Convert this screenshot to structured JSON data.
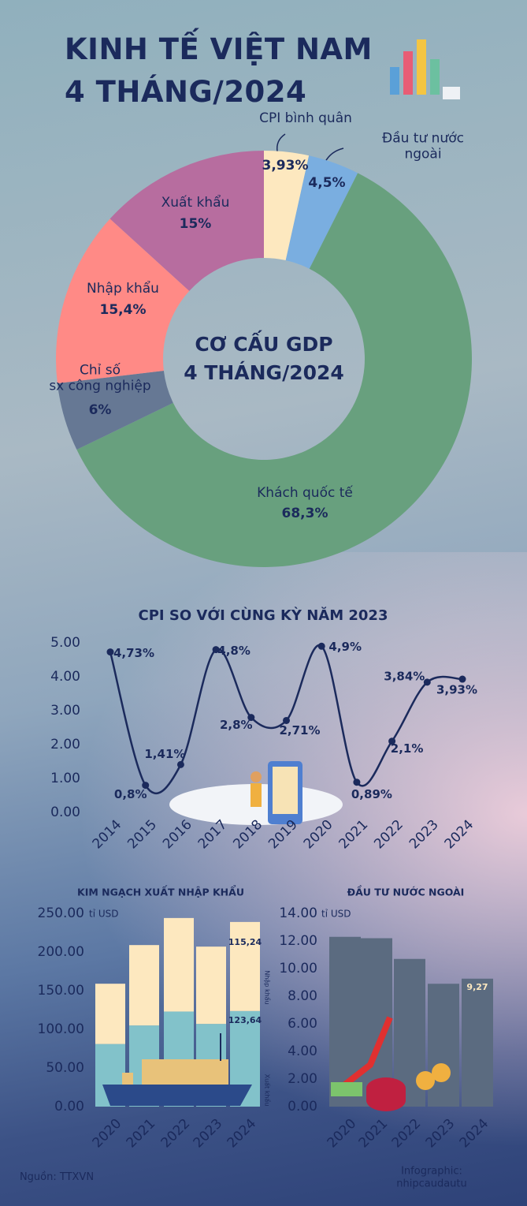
{
  "header": {
    "title": "KINH TẾ VIỆT NAM\n4 THÁNG/2024"
  },
  "chart_data": [
    {
      "type": "donut",
      "title": "CƠ CẤU GDP\n4 THÁNG/2024",
      "categories": [
        "CPI bình quân",
        "Đầu tư nước ngoài",
        "Khách quốc tế",
        "Chỉ số\nsx công nghiệp",
        "Nhập khẩu",
        "Xuất khẩu"
      ],
      "values": [
        3.93,
        4.5,
        68.3,
        6,
        15.4,
        15
      ],
      "value_labels": [
        "3,93%",
        "4,5%",
        "68,3%",
        "6%",
        "15,4%",
        "15%"
      ],
      "colors": [
        "#fde8bf",
        "#7aaee0",
        "#68a07e",
        "#667894",
        "#ff8a86",
        "#b76d9f"
      ]
    },
    {
      "type": "line",
      "title": "CPI SO VỚI CÙNG KỲ NĂM 2023",
      "x": [
        2014,
        2015,
        2016,
        2017,
        2018,
        2019,
        2020,
        2021,
        2022,
        2023,
        2024
      ],
      "values": [
        4.73,
        0.8,
        1.41,
        4.8,
        2.8,
        2.71,
        4.9,
        0.89,
        2.1,
        3.84,
        3.93
      ],
      "value_labels": [
        "4,73%",
        "0,8%",
        "1,41%",
        "4,8%",
        "2,8%",
        "2,71%",
        "4,9%",
        "0,89%",
        "2,1%",
        "3,84%",
        "3,93%"
      ],
      "color": "#1b2a5c",
      "ylim": [
        0,
        5
      ],
      "yticks": [
        {
          "value": 0,
          "label": "0.00"
        },
        {
          "value": 1,
          "label": "1.00"
        },
        {
          "value": 2,
          "label": "2.00"
        },
        {
          "value": 3,
          "label": "3.00"
        },
        {
          "value": 4,
          "label": "4.00"
        },
        {
          "value": 5,
          "label": "5.00"
        }
      ]
    },
    {
      "type": "stacked_bar",
      "title": "KIM NGẠCH XUẤT NHẬP KHẨU",
      "y_unit": "tỉ USD",
      "categories": [
        "2020",
        "2021",
        "2022",
        "2023",
        "2024"
      ],
      "series": [
        {
          "name": "Xuất khẩu",
          "color": "#82c2ca",
          "values": [
            81,
            105,
            123,
            107,
            123.64
          ],
          "value_labels": [
            null,
            null,
            null,
            null,
            "123,64"
          ]
        },
        {
          "name": "Nhập khẩu",
          "color": "#fde8bf",
          "values": [
            78,
            104,
            121,
            100,
            115.24
          ],
          "value_labels": [
            null,
            null,
            null,
            null,
            "115,24"
          ]
        }
      ],
      "ylim": [
        0,
        250
      ],
      "yticks": [
        {
          "value": 0,
          "label": "0.00"
        },
        {
          "value": 50,
          "label": "50.00"
        },
        {
          "value": 100,
          "label": "100.00"
        },
        {
          "value": 150,
          "label": "150.00"
        },
        {
          "value": 200,
          "label": "200.00"
        },
        {
          "value": 250,
          "label": "250.00"
        }
      ]
    },
    {
      "type": "bar",
      "title": "ĐẦU TƯ NƯỚC NGOÀI",
      "y_unit": "tỉ USD",
      "categories": [
        "2020",
        "2021",
        "2022",
        "2023",
        "2024"
      ],
      "values": [
        12.3,
        12.2,
        10.7,
        8.9,
        9.27
      ],
      "value_labels": [
        null,
        null,
        null,
        null,
        "9,27"
      ],
      "color": "#5b6b80",
      "ylim": [
        0,
        14
      ],
      "yticks": [
        {
          "value": 0,
          "label": "0.00"
        },
        {
          "value": 2,
          "label": "2.00"
        },
        {
          "value": 4,
          "label": "4.00"
        },
        {
          "value": 6,
          "label": "6.00"
        },
        {
          "value": 8,
          "label": "8.00"
        },
        {
          "value": 10,
          "label": "10.00"
        },
        {
          "value": 12,
          "label": "12.00"
        },
        {
          "value": 14,
          "label": "14.00"
        }
      ]
    }
  ],
  "footer": {
    "source": "Nguồn: TTXVN",
    "credit": "Infographic: nhipcaudautu"
  }
}
